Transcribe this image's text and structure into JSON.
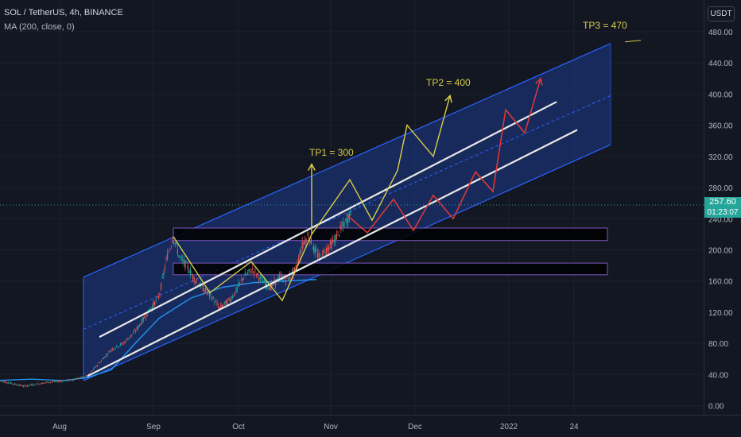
{
  "header": {
    "symbol_line": "SOL / TetherUS, 4h, BINANCE",
    "indicator_line": "MA (200, close, 0)"
  },
  "price_scale": {
    "currency": "USDT",
    "ticks": [
      "480.00",
      "440.00",
      "400.00",
      "360.00",
      "320.00",
      "280.00",
      "240.00",
      "200.00",
      "160.00",
      "120.00",
      "80.00",
      "40.00",
      "0.00"
    ],
    "last_price": "257.60",
    "countdown": "01:23:07"
  },
  "colors": {
    "background": "#131722",
    "channel_fill": "#1e3a8a",
    "channel_line": "#2962ff",
    "up_candle": "#26a69a",
    "down_candle": "#ef5350",
    "ma_line": "#2196f3",
    "yellow_path": "#d8cc4a",
    "red_path": "#e53935",
    "zone": "#000000"
  },
  "chart_data": {
    "type": "line",
    "title": "",
    "time_axis_labels": [
      "Aug",
      "Sep",
      "Oct",
      "Nov",
      "Dec",
      "2022",
      "24"
    ],
    "ylim": [
      -10,
      490
    ],
    "annotations": [
      {
        "text": "TP1 = 300",
        "value": 300
      },
      {
        "text": "TP2 = 400",
        "value": 400
      },
      {
        "text": "TP3 = 470",
        "value": 470
      }
    ],
    "last_price": 257.6,
    "support_zones": [
      [
        212,
        228
      ],
      [
        168,
        183
      ]
    ],
    "ma200": [
      [
        -10,
        32
      ],
      [
        40,
        34
      ],
      [
        80,
        32
      ],
      [
        110,
        36
      ],
      [
        140,
        46
      ],
      [
        170,
        80
      ],
      [
        200,
        112
      ],
      [
        240,
        138
      ],
      [
        280,
        152
      ],
      [
        320,
        158
      ],
      [
        360,
        160
      ],
      [
        398,
        162
      ]
    ],
    "price": [
      [
        0,
        32
      ],
      [
        30,
        25
      ],
      [
        60,
        30
      ],
      [
        90,
        33
      ],
      [
        110,
        38
      ],
      [
        125,
        55
      ],
      [
        140,
        72
      ],
      [
        155,
        80
      ],
      [
        170,
        95
      ],
      [
        185,
        118
      ],
      [
        200,
        140
      ],
      [
        210,
        190
      ],
      [
        218,
        217
      ],
      [
        226,
        190
      ],
      [
        236,
        178
      ],
      [
        246,
        160
      ],
      [
        256,
        150
      ],
      [
        266,
        140
      ],
      [
        276,
        125
      ],
      [
        288,
        135
      ],
      [
        296,
        145
      ],
      [
        306,
        165
      ],
      [
        318,
        175
      ],
      [
        330,
        160
      ],
      [
        340,
        152
      ],
      [
        352,
        165
      ],
      [
        362,
        162
      ],
      [
        372,
        175
      ],
      [
        380,
        205
      ],
      [
        388,
        220
      ],
      [
        395,
        200
      ],
      [
        402,
        190
      ],
      [
        410,
        200
      ],
      [
        418,
        208
      ],
      [
        428,
        225
      ],
      [
        436,
        238
      ],
      [
        442,
        250
      ]
    ],
    "channel": {
      "upper_line": [
        [
          105,
          165
        ],
        [
          768,
          465
        ]
      ],
      "lower_line": [
        [
          105,
          32
        ],
        [
          768,
          335
        ]
      ],
      "mid_line": [
        [
          105,
          98
        ],
        [
          768,
          398
        ]
      ]
    },
    "trend_lines": [
      [
        [
          125,
          88
        ],
        [
          700,
          390
        ]
      ],
      [
        [
          110,
          38
        ],
        [
          726,
          354
        ]
      ]
    ],
    "yellow_projection": [
      [
        218,
        217
      ],
      [
        264,
        145
      ],
      [
        316,
        185
      ],
      [
        355,
        135
      ],
      [
        392,
        220
      ],
      [
        392,
        310
      ],
      [
        392,
        220
      ],
      [
        440,
        290
      ],
      [
        468,
        238
      ],
      [
        500,
        302
      ],
      [
        512,
        360
      ],
      [
        545,
        320
      ],
      [
        566,
        398
      ]
    ],
    "red_projection": [
      [
        436,
        245
      ],
      [
        462,
        222
      ],
      [
        495,
        265
      ],
      [
        520,
        225
      ],
      [
        545,
        270
      ],
      [
        570,
        240
      ],
      [
        598,
        300
      ],
      [
        620,
        275
      ],
      [
        636,
        380
      ],
      [
        660,
        350
      ],
      [
        680,
        420
      ]
    ]
  }
}
